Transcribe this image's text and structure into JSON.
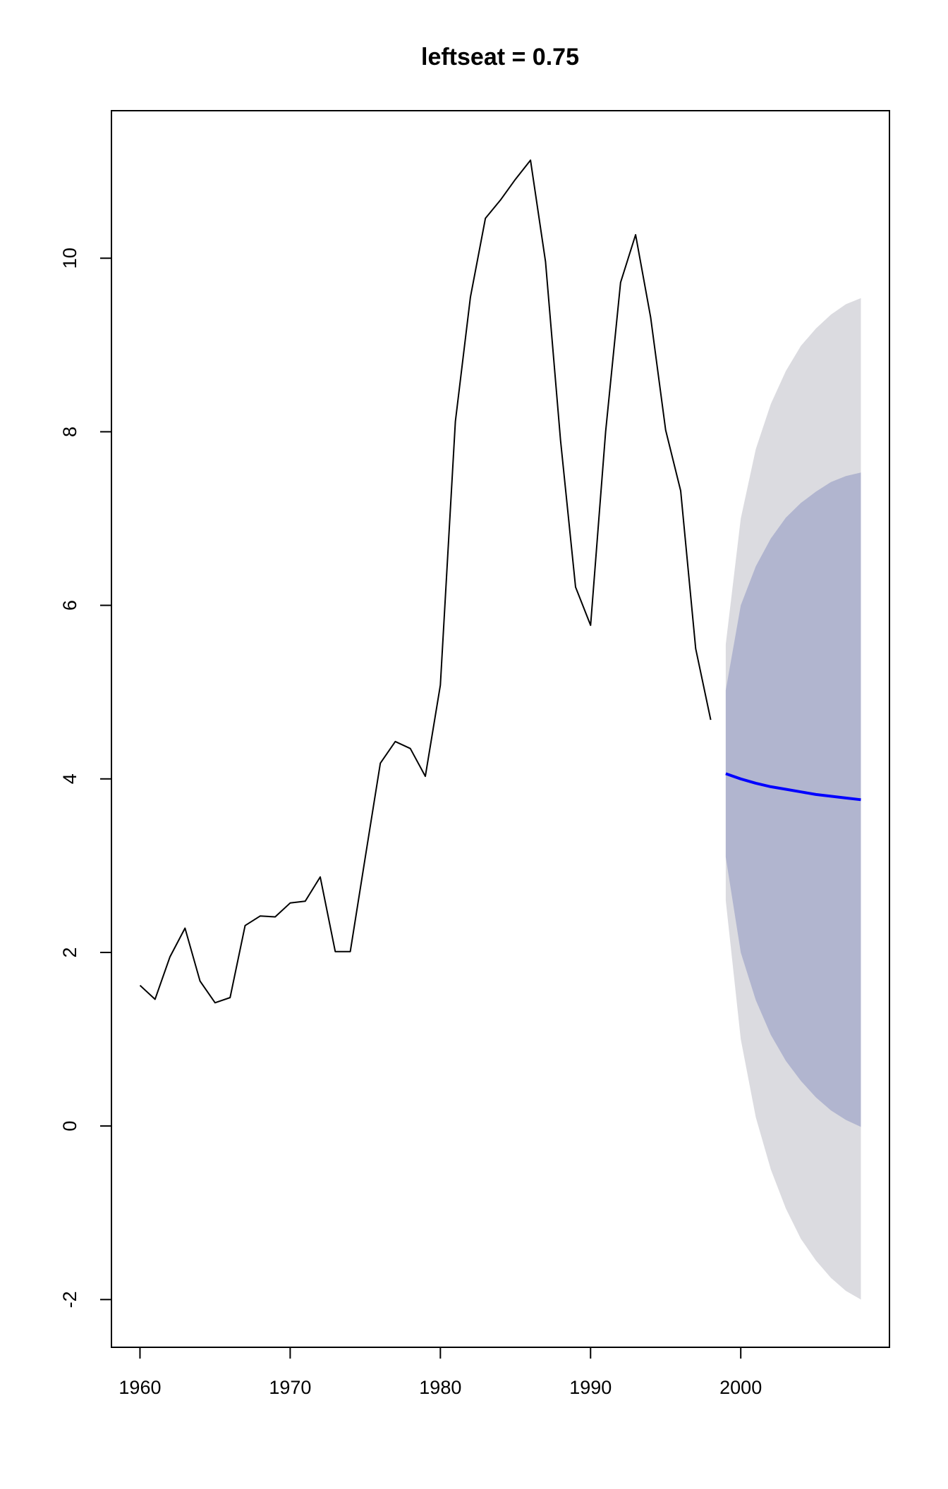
{
  "chart_data": {
    "type": "line",
    "title": "leftseat = 0.75",
    "xlabel": "",
    "ylabel": "",
    "xlim": [
      1958.1,
      2009.9
    ],
    "ylim": [
      -2.55,
      11.7
    ],
    "x_ticks": [
      1960,
      1970,
      1980,
      1990,
      2000
    ],
    "y_ticks": [
      -2,
      0,
      2,
      4,
      6,
      8,
      10
    ],
    "x_tick_labels": [
      "1960",
      "1970",
      "1980",
      "1990",
      "2000"
    ],
    "y_tick_labels": [
      "-2",
      "0",
      "2",
      "4",
      "6",
      "8",
      "10"
    ],
    "grid": false,
    "legend": "none",
    "series": [
      {
        "role": "observed",
        "color": "#000000",
        "x": [
          1960,
          1961,
          1962,
          1963,
          1964,
          1965,
          1966,
          1967,
          1968,
          1969,
          1970,
          1971,
          1972,
          1973,
          1974,
          1975,
          1976,
          1977,
          1978,
          1979,
          1980,
          1981,
          1982,
          1983,
          1984,
          1985,
          1986,
          1987,
          1988,
          1989,
          1990,
          1991,
          1992,
          1993,
          1994,
          1995,
          1996,
          1997,
          1998
        ],
        "y": [
          1.62,
          1.46,
          1.95,
          2.28,
          1.67,
          1.42,
          1.48,
          2.31,
          2.42,
          2.41,
          2.57,
          2.59,
          2.87,
          2.01,
          2.01,
          3.1,
          4.18,
          4.43,
          4.35,
          4.03,
          5.08,
          8.12,
          9.55,
          10.46,
          10.67,
          10.91,
          11.13,
          9.96,
          7.9,
          6.21,
          5.77,
          8.0,
          9.72,
          10.27,
          9.32,
          8.02,
          7.32,
          5.5,
          4.68
        ]
      },
      {
        "role": "forecast",
        "color": "#0000ff",
        "x": [
          1999,
          2000,
          2001,
          2002,
          2003,
          2004,
          2005,
          2006,
          2007,
          2008
        ],
        "y": [
          4.06,
          4.0,
          3.95,
          3.91,
          3.88,
          3.85,
          3.82,
          3.8,
          3.78,
          3.76
        ],
        "lower80": [
          3.1,
          2.0,
          1.45,
          1.05,
          0.75,
          0.52,
          0.33,
          0.18,
          0.07,
          -0.01
        ],
        "upper80": [
          5.02,
          6.0,
          6.45,
          6.77,
          7.01,
          7.18,
          7.31,
          7.42,
          7.49,
          7.53
        ],
        "lower95": [
          2.6,
          1.0,
          0.1,
          -0.5,
          -0.95,
          -1.3,
          -1.55,
          -1.75,
          -1.9,
          -2.0
        ],
        "upper95": [
          5.55,
          7.0,
          7.8,
          8.32,
          8.7,
          8.99,
          9.19,
          9.35,
          9.47,
          9.54
        ]
      }
    ],
    "colors": {
      "band95": "#dbdbe0",
      "band80": "#b1b5cf",
      "forecast_line": "#0000ff",
      "observed_line": "#000000"
    }
  }
}
